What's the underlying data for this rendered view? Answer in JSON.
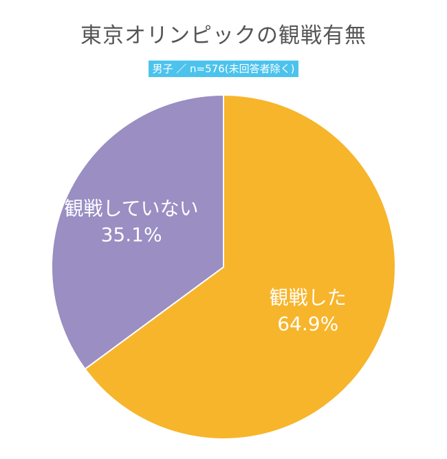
{
  "chart_data": {
    "type": "pie",
    "title": "東京オリンピックの観戦有無",
    "subtitle": "男子 ／ n=576(未回答者除く)",
    "categories": [
      "観戦した",
      "観戦していない"
    ],
    "values": [
      64.9,
      35.1
    ],
    "value_labels": [
      "64.9%",
      "35.1%"
    ],
    "colors": [
      "#f7b52b",
      "#9a8ec3"
    ],
    "start": "12 o'clock",
    "direction": "clockwise"
  }
}
